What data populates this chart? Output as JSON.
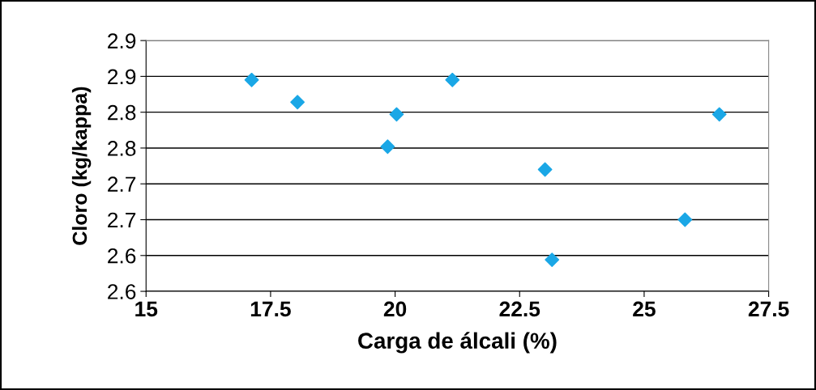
{
  "chart_data": {
    "type": "scatter",
    "xlabel": "Carga de álcali (%)",
    "ylabel": "Cloro (kg/kappa)",
    "x": [
      17.12,
      18.04,
      20.03,
      19.85,
      21.15,
      23.01,
      23.15,
      25.82,
      26.51
    ],
    "series": [
      {
        "color": "#1aa7e6",
        "values": [
          2.895,
          2.864,
          2.847,
          2.802,
          2.895,
          2.77,
          2.644,
          2.7,
          2.847
        ]
      }
    ],
    "xlim": [
      15,
      27.5
    ],
    "xticks": [
      15,
      17.5,
      20,
      22.5,
      25,
      27.5
    ],
    "ylim": [
      2.6,
      2.95
    ],
    "yticks": [
      {
        "value": 2.6,
        "label": "2.6"
      },
      {
        "value": 2.65,
        "label": "2.6"
      },
      {
        "value": 2.7,
        "label": "2.7"
      },
      {
        "value": 2.75,
        "label": "2.7"
      },
      {
        "value": 2.8,
        "label": "2.8"
      },
      {
        "value": 2.85,
        "label": "2.8"
      },
      {
        "value": 2.9,
        "label": "2.9"
      },
      {
        "value": 2.95,
        "label": "2.9"
      }
    ],
    "grid": "y",
    "marker": "diamond",
    "legend": false
  }
}
